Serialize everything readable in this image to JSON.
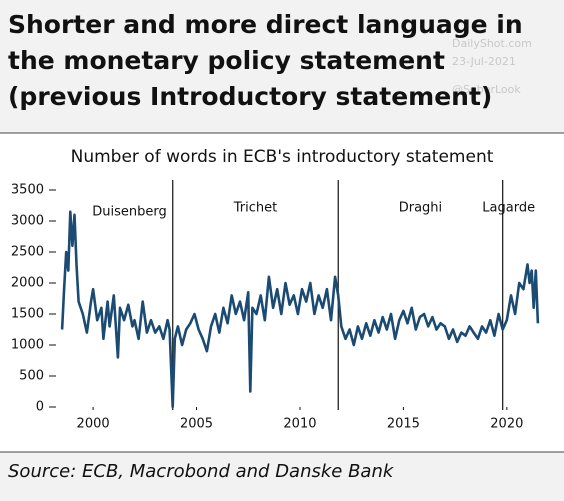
{
  "header": {
    "title_lines": [
      "Shorter and more direct language in",
      "the monetary policy statement",
      "(previous Introductory statement)"
    ],
    "watermark": [
      "DailyShot.com",
      "23-Jul-2021",
      "@SoberLook"
    ]
  },
  "chart_data": {
    "type": "line",
    "title": "Number of words in ECB's introductory statement",
    "source": "Source: ECB, Macrobond and Danske Bank",
    "xlim": [
      1998.4,
      2021.7
    ],
    "xticks": [
      2000,
      2005,
      2010,
      2015,
      2020
    ],
    "ylim": [
      0,
      3500
    ],
    "yticks": [
      0,
      500,
      1000,
      1500,
      2000,
      2500,
      3000,
      3500
    ],
    "annotations": [
      {
        "x": 2003.85,
        "label": "Duisenberg"
      },
      {
        "x": 2003.85,
        "label": "Trichet"
      },
      {
        "x": 2011.85,
        "label": "Draghi"
      },
      {
        "x": 2019.8,
        "label": "Lagarde"
      }
    ],
    "series": [
      {
        "color": "#1b4a73",
        "x": [
          1998.5,
          1998.6,
          1998.7,
          1998.8,
          1998.9,
          1999.0,
          1999.1,
          1999.2,
          1999.3,
          1999.5,
          1999.7,
          1999.9,
          2000.0,
          2000.2,
          2000.4,
          2000.5,
          2000.7,
          2000.8,
          2001.0,
          2001.2,
          2001.3,
          2001.5,
          2001.7,
          2001.9,
          2002.0,
          2002.2,
          2002.4,
          2002.6,
          2002.8,
          2003.0,
          2003.2,
          2003.4,
          2003.6,
          2003.7,
          2003.85,
          2003.95,
          2004.1,
          2004.3,
          2004.5,
          2004.7,
          2004.9,
          2005.1,
          2005.3,
          2005.5,
          2005.7,
          2005.9,
          2006.1,
          2006.3,
          2006.5,
          2006.7,
          2006.9,
          2007.1,
          2007.3,
          2007.5,
          2007.6,
          2007.7,
          2007.9,
          2008.1,
          2008.3,
          2008.5,
          2008.7,
          2008.9,
          2009.1,
          2009.3,
          2009.5,
          2009.7,
          2009.9,
          2010.1,
          2010.3,
          2010.5,
          2010.7,
          2010.9,
          2011.1,
          2011.3,
          2011.5,
          2011.7,
          2011.85,
          2012.0,
          2012.2,
          2012.4,
          2012.6,
          2012.8,
          2013.0,
          2013.2,
          2013.4,
          2013.6,
          2013.8,
          2014.0,
          2014.2,
          2014.4,
          2014.6,
          2014.8,
          2015.0,
          2015.2,
          2015.4,
          2015.6,
          2015.8,
          2016.0,
          2016.2,
          2016.4,
          2016.6,
          2016.8,
          2017.0,
          2017.2,
          2017.4,
          2017.6,
          2017.8,
          2018.0,
          2018.2,
          2018.4,
          2018.6,
          2018.8,
          2019.0,
          2019.2,
          2019.4,
          2019.6,
          2019.8,
          2020.0,
          2020.2,
          2020.4,
          2020.6,
          2020.8,
          2021.0,
          2021.1,
          2021.2,
          2021.3,
          2021.4,
          2021.5
        ],
        "values": [
          1250,
          1900,
          2500,
          2200,
          3150,
          2600,
          3100,
          2300,
          1700,
          1500,
          1200,
          1700,
          1900,
          1400,
          1600,
          1100,
          1700,
          1300,
          1800,
          800,
          1600,
          1400,
          1650,
          1300,
          1400,
          1100,
          1700,
          1200,
          1400,
          1200,
          1300,
          1100,
          1400,
          1250,
          0,
          1100,
          1300,
          1000,
          1250,
          1350,
          1500,
          1250,
          1100,
          900,
          1300,
          1500,
          1200,
          1600,
          1350,
          1800,
          1500,
          1700,
          1400,
          1850,
          250,
          1600,
          1500,
          1800,
          1400,
          2100,
          1600,
          1900,
          1500,
          2000,
          1650,
          1800,
          1500,
          1900,
          1700,
          2000,
          1500,
          1800,
          1600,
          1900,
          1400,
          2100,
          1800,
          1300,
          1100,
          1250,
          1000,
          1300,
          1100,
          1350,
          1150,
          1400,
          1200,
          1450,
          1250,
          1500,
          1100,
          1400,
          1550,
          1350,
          1600,
          1250,
          1450,
          1500,
          1300,
          1450,
          1250,
          1350,
          1300,
          1100,
          1250,
          1050,
          1200,
          1150,
          1300,
          1200,
          1100,
          1300,
          1200,
          1400,
          1150,
          1500,
          1250,
          1400,
          1800,
          1500,
          2000,
          1900,
          2300,
          2000,
          2200,
          1600,
          2200,
          1350
        ]
      }
    ]
  }
}
